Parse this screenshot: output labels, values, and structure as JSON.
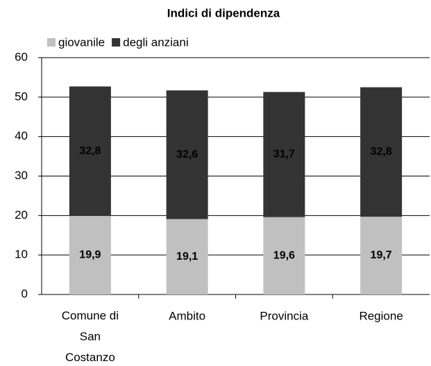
{
  "chart_data": {
    "type": "stacked-bar",
    "title": "Indici di dipendenza",
    "categories": [
      "Comune di San Costanzo",
      "Ambito",
      "Provincia",
      "Regione"
    ],
    "series": [
      {
        "name": "giovanile",
        "color": "#c0c0c0",
        "values": [
          19.9,
          19.1,
          19.6,
          19.7
        ],
        "value_labels": [
          "19,9",
          "19,1",
          "19,6",
          "19,7"
        ]
      },
      {
        "name": "degli anziani",
        "color": "#333333",
        "values": [
          32.8,
          32.6,
          31.7,
          32.8
        ],
        "value_labels": [
          "32,8",
          "32,6",
          "31,7",
          "32,8"
        ]
      }
    ],
    "ylim": [
      0,
      60
    ],
    "yticks": [
      0,
      10,
      20,
      30,
      40,
      50,
      60
    ],
    "grid": true,
    "legend": "top"
  }
}
